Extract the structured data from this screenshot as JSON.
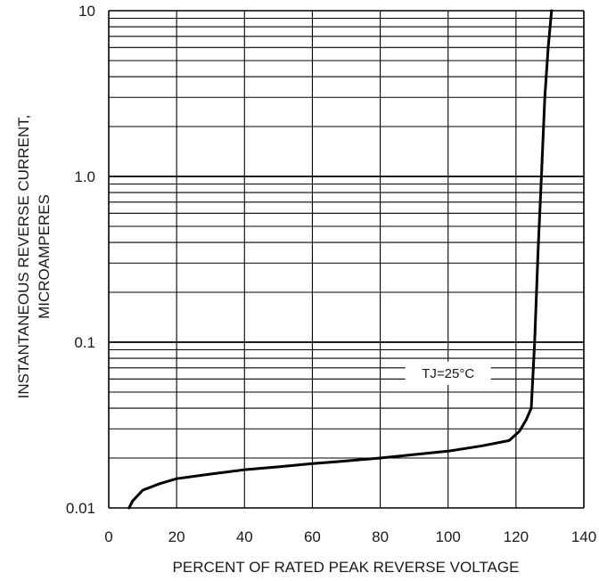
{
  "chart_data": {
    "type": "line",
    "title": "",
    "xlabel": "PERCENT OF RATED PEAK REVERSE VOLTAGE",
    "ylabel_line1": "INSTANTANEOUS  REVERSE  CURRENT,",
    "ylabel_line2": "MICROAMPERES",
    "xlim": [
      0,
      140
    ],
    "ylim": [
      0.01,
      10
    ],
    "y_scale": "log",
    "grid": true,
    "x_ticks": [
      0,
      20,
      40,
      60,
      80,
      100,
      120,
      140
    ],
    "x_tick_labels": [
      "0",
      "20",
      "40",
      "60",
      "80",
      "100",
      "120",
      "140"
    ],
    "y_ticks": [
      0.01,
      0.1,
      1.0,
      10
    ],
    "y_tick_labels": [
      "0.01",
      "0.1",
      "1.0",
      "10"
    ],
    "annotation": "TJ=25°C",
    "annotation_at": {
      "x": 100,
      "y": 0.065
    },
    "series": [
      {
        "x": [
          6,
          7,
          10,
          15,
          20,
          30,
          40,
          50,
          60,
          70,
          80,
          90,
          100,
          110,
          118,
          121,
          123,
          124.5,
          125.5,
          126.5,
          127.5,
          128.5,
          129.5,
          130.5
        ],
        "y": [
          0.01,
          0.011,
          0.0128,
          0.014,
          0.015,
          0.016,
          0.017,
          0.0177,
          0.0185,
          0.0192,
          0.02,
          0.021,
          0.022,
          0.0237,
          0.0255,
          0.029,
          0.034,
          0.04,
          0.1,
          0.35,
          1.0,
          3.0,
          6.0,
          10.0
        ],
        "color": "#000000"
      }
    ]
  }
}
